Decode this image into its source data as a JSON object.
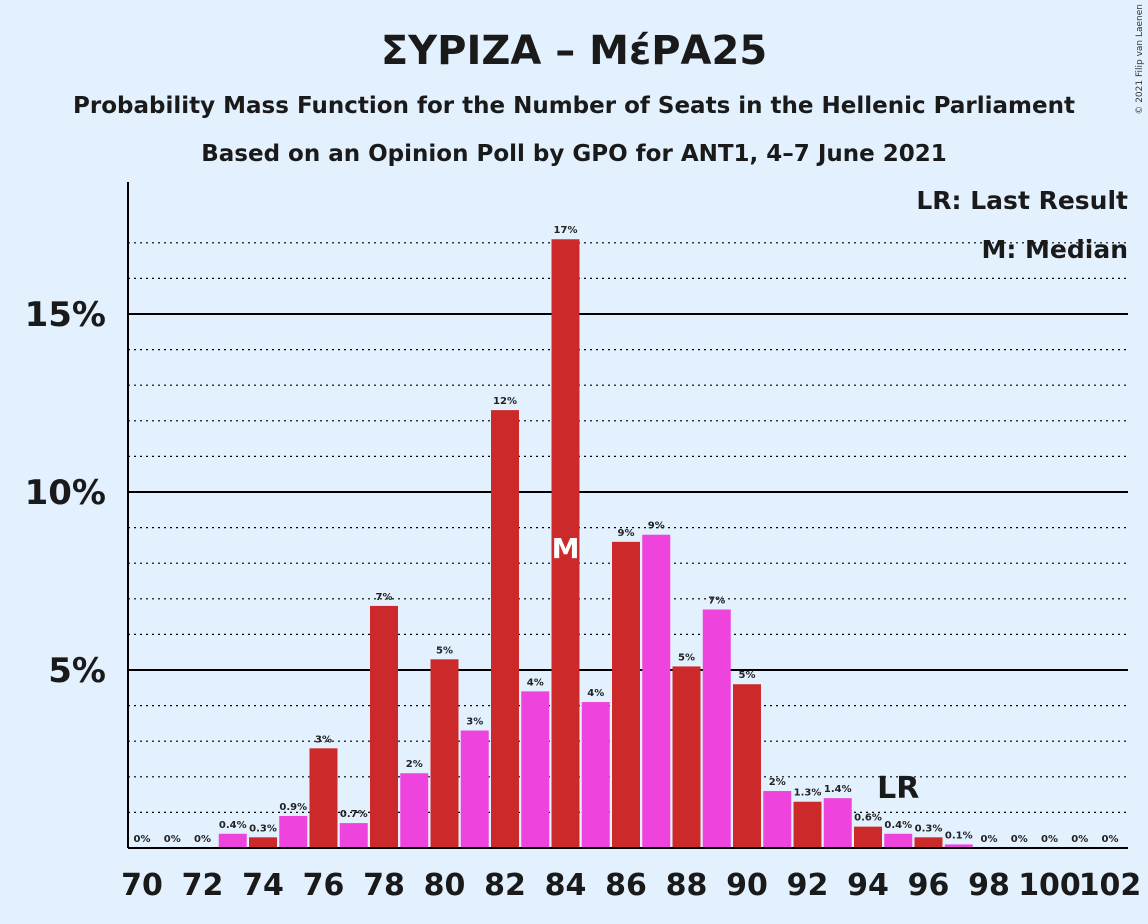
{
  "chart_data": {
    "type": "bar",
    "title": "ΣΥΡΙΖΑ – ΜέΡΑ25",
    "subtitle1": "Probability Mass Function for the Number of Seats in the Hellenic Parliament",
    "subtitle2": "Based on an Opinion Poll by GPO for ANT1, 4–7 June 2021",
    "copyright": "© 2021 Filip van Laenen",
    "legend": {
      "lr": "LR: Last Result",
      "m": "M: Median",
      "placement": "top-right"
    },
    "ylim": [
      0,
      18.5
    ],
    "y_ticks": [
      {
        "value": 5,
        "label": "5%"
      },
      {
        "value": 10,
        "label": "10%"
      },
      {
        "value": 15,
        "label": "15%"
      }
    ],
    "x_ticks": [
      "70",
      "72",
      "74",
      "76",
      "78",
      "80",
      "82",
      "84",
      "86",
      "88",
      "90",
      "92",
      "94",
      "96",
      "98",
      "100",
      "102"
    ],
    "median_seat": 84,
    "median_marker": "M",
    "last_result_seat": 95,
    "last_result_marker": "LR",
    "colors": {
      "red": "#cc2a2a",
      "magenta": "#ee44dd",
      "background": "#e3f1ff"
    },
    "bars": [
      {
        "x": 70,
        "value": 0,
        "label": "0%",
        "color": "red"
      },
      {
        "x": 71,
        "value": 0,
        "label": "0%",
        "color": "magenta"
      },
      {
        "x": 72,
        "value": 0,
        "label": "0%",
        "color": "red"
      },
      {
        "x": 73,
        "value": 0.4,
        "label": "0.4%",
        "color": "magenta"
      },
      {
        "x": 74,
        "value": 0.3,
        "label": "0.3%",
        "color": "red"
      },
      {
        "x": 75,
        "value": 0.9,
        "label": "0.9%",
        "color": "magenta"
      },
      {
        "x": 76,
        "value": 2.8,
        "label": "3%",
        "color": "red"
      },
      {
        "x": 77,
        "value": 0.7,
        "label": "0.7%",
        "color": "magenta"
      },
      {
        "x": 78,
        "value": 6.8,
        "label": "7%",
        "color": "red"
      },
      {
        "x": 79,
        "value": 2.1,
        "label": "2%",
        "color": "magenta"
      },
      {
        "x": 80,
        "value": 5.3,
        "label": "5%",
        "color": "red"
      },
      {
        "x": 81,
        "value": 3.3,
        "label": "3%",
        "color": "magenta"
      },
      {
        "x": 82,
        "value": 12.3,
        "label": "12%",
        "color": "red"
      },
      {
        "x": 83,
        "value": 4.4,
        "label": "4%",
        "color": "magenta"
      },
      {
        "x": 84,
        "value": 17.1,
        "label": "17%",
        "color": "red"
      },
      {
        "x": 85,
        "value": 4.1,
        "label": "4%",
        "color": "magenta"
      },
      {
        "x": 86,
        "value": 8.6,
        "label": "9%",
        "color": "red"
      },
      {
        "x": 87,
        "value": 8.8,
        "label": "9%",
        "color": "magenta"
      },
      {
        "x": 88,
        "value": 5.1,
        "label": "5%",
        "color": "red"
      },
      {
        "x": 89,
        "value": 6.7,
        "label": "7%",
        "color": "magenta"
      },
      {
        "x": 90,
        "value": 4.6,
        "label": "5%",
        "color": "red"
      },
      {
        "x": 91,
        "value": 1.6,
        "label": "2%",
        "color": "magenta"
      },
      {
        "x": 92,
        "value": 1.3,
        "label": "1.3%",
        "color": "red"
      },
      {
        "x": 93,
        "value": 1.4,
        "label": "1.4%",
        "color": "magenta"
      },
      {
        "x": 94,
        "value": 0.6,
        "label": "0.6%",
        "color": "red"
      },
      {
        "x": 95,
        "value": 0.4,
        "label": "0.4%",
        "color": "magenta"
      },
      {
        "x": 96,
        "value": 0.3,
        "label": "0.3%",
        "color": "red"
      },
      {
        "x": 97,
        "value": 0.1,
        "label": "0.1%",
        "color": "magenta"
      },
      {
        "x": 98,
        "value": 0,
        "label": "0%",
        "color": "red"
      },
      {
        "x": 99,
        "value": 0,
        "label": "0%",
        "color": "magenta"
      },
      {
        "x": 100,
        "value": 0,
        "label": "0%",
        "color": "red"
      },
      {
        "x": 101,
        "value": 0,
        "label": "0%",
        "color": "magenta"
      },
      {
        "x": 102,
        "value": 0,
        "label": "0%",
        "color": "red"
      }
    ]
  }
}
